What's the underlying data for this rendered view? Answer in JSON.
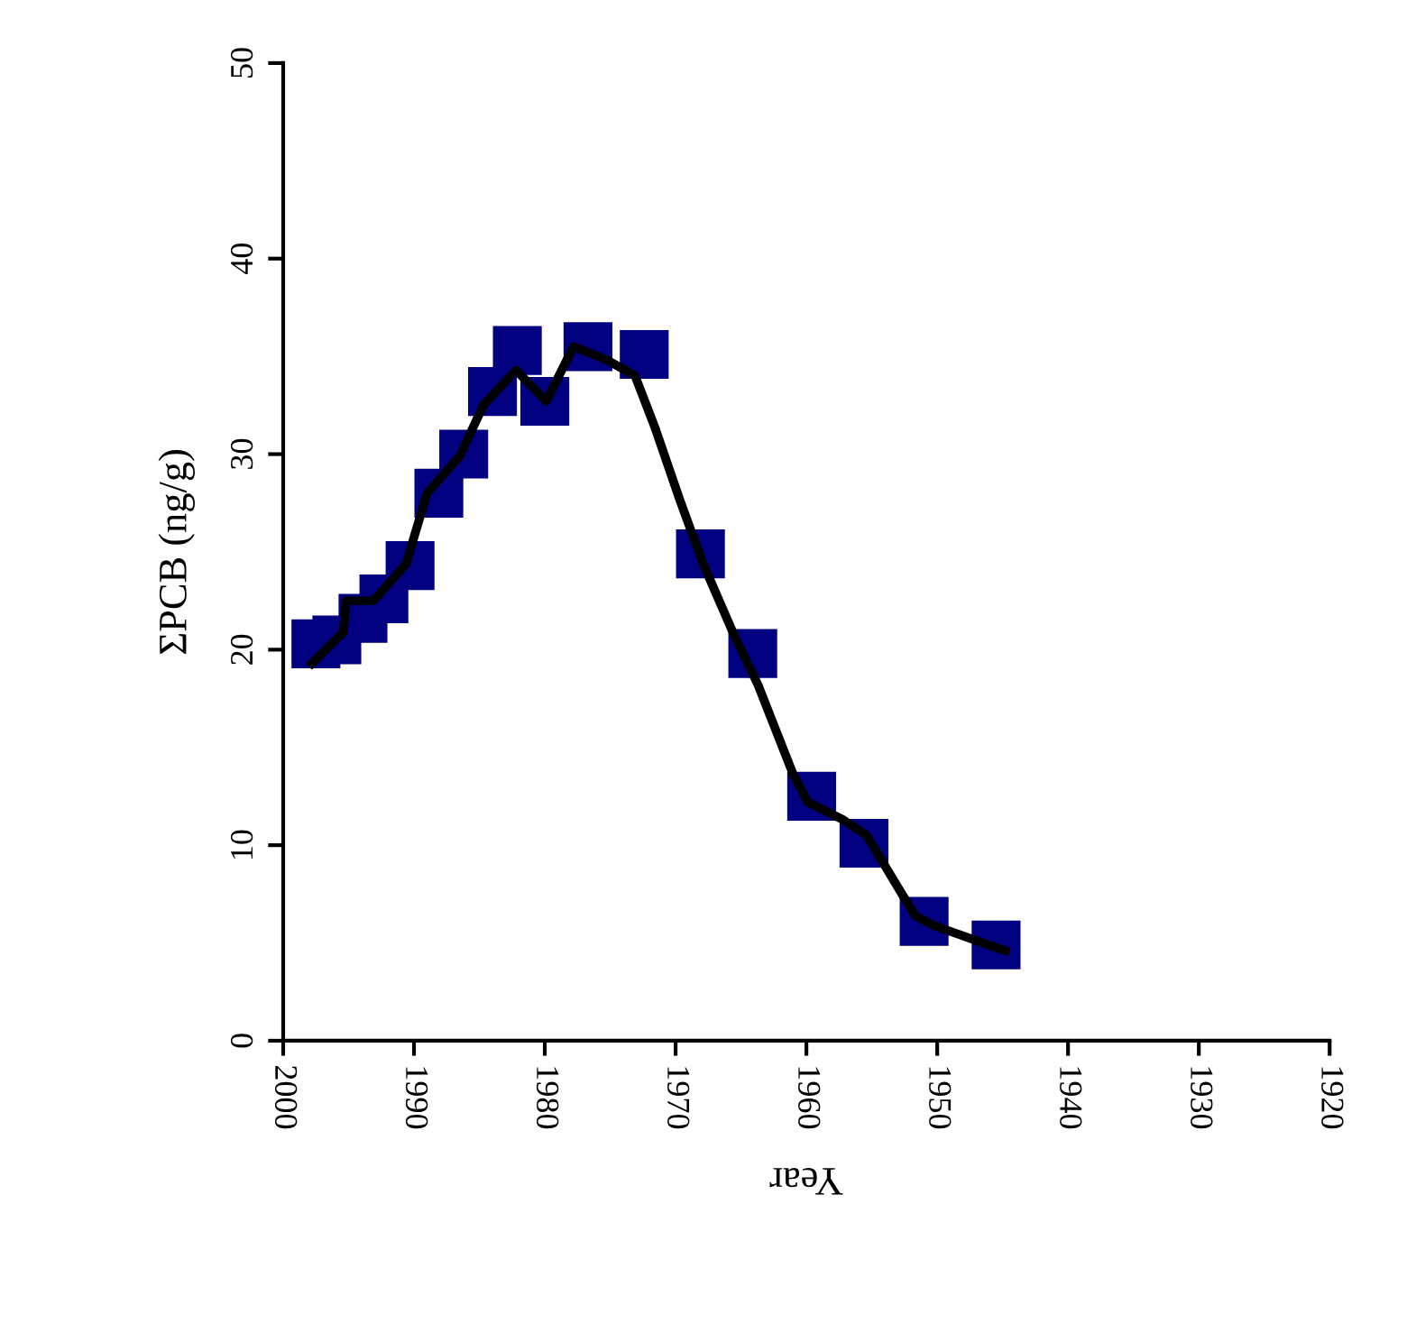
{
  "chart_data": {
    "type": "scatter",
    "xlabel": "Year",
    "ylabel": "ΣPCB (ng/g)",
    "xlim": [
      2000,
      1920
    ],
    "xticks": [
      2000,
      1990,
      1980,
      1970,
      1960,
      1950,
      1940,
      1930,
      1920
    ],
    "ylim": [
      0,
      50
    ],
    "yticks": [
      0,
      10,
      20,
      30,
      40,
      50
    ],
    "grid": false,
    "legend": false,
    "series": [
      {
        "color": "#000080",
        "marker": "square",
        "x": [
          1997.5,
          1995.9,
          1993.9,
          1992.3,
          1990.3,
          1988.1,
          1986.2,
          1984.0,
          1982.1,
          1980.0,
          1976.7,
          1972.4,
          1968.1,
          1964.1,
          1959.6,
          1955.6,
          1951.0,
          1945.5
        ],
        "values": [
          20.3,
          20.5,
          21.6,
          22.6,
          24.3,
          28.0,
          30.0,
          33.2,
          35.3,
          32.7,
          35.5,
          35.1,
          24.9,
          19.8,
          12.5,
          10.1,
          6.1,
          4.9
        ]
      },
      {
        "type": "line",
        "color": "#000000",
        "marker": "none",
        "line_style": "solid",
        "x": [
          1997.8,
          1995.4,
          1995.2,
          1993.1,
          1990.6,
          1989.0,
          1986.5,
          1984.7,
          1982.2,
          1979.9,
          1977.8,
          1975.2,
          1973.1,
          1971.6,
          1969.7,
          1967.9,
          1965.5,
          1963.7,
          1961.0,
          1959.9,
          1957.2,
          1955.4,
          1951.7,
          1950.3,
          1944.8
        ],
        "values": [
          19.3,
          20.9,
          22.5,
          22.5,
          24.4,
          28.0,
          29.9,
          32.5,
          34.3,
          32.7,
          35.5,
          34.8,
          34.0,
          31.4,
          27.7,
          24.4,
          20.7,
          18.2,
          13.6,
          12.2,
          11.3,
          10.5,
          6.4,
          5.9,
          4.6
        ]
      }
    ]
  }
}
